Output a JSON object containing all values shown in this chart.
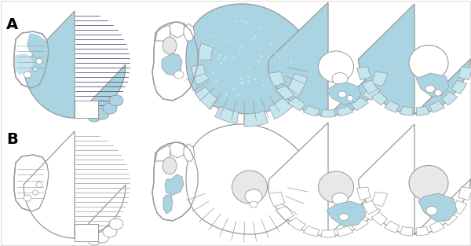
{
  "title_A": "A",
  "title_B": "B",
  "fig_width": 6.0,
  "fig_height": 3.13,
  "dpi": 100,
  "bg_color": "#ffffff",
  "outline_color": "#999999",
  "blue_fill": "#aad4e2",
  "blue_light": "#c5e5ef",
  "label_fontsize": 14,
  "label_fontweight": "bold"
}
